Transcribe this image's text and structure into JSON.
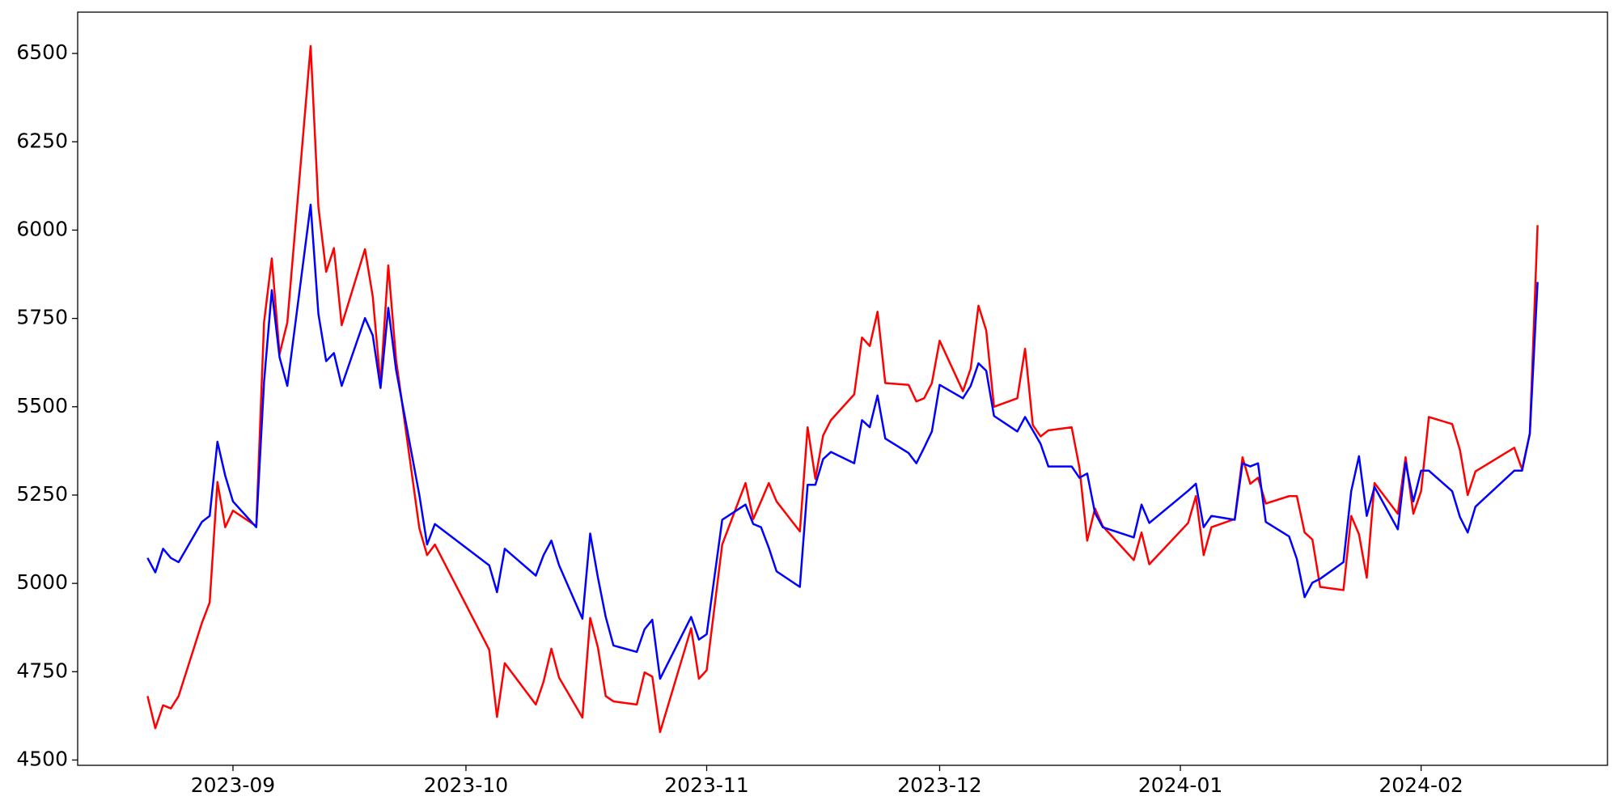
{
  "chart_data": {
    "type": "line",
    "x": [
      "2023-08-21",
      "2023-08-22",
      "2023-08-23",
      "2023-08-24",
      "2023-08-25",
      "2023-08-28",
      "2023-08-29",
      "2023-08-30",
      "2023-08-31",
      "2023-09-01",
      "2023-09-04",
      "2023-09-05",
      "2023-09-06",
      "2023-09-07",
      "2023-09-08",
      "2023-09-11",
      "2023-09-12",
      "2023-09-13",
      "2023-09-14",
      "2023-09-15",
      "2023-09-18",
      "2023-09-19",
      "2023-09-20",
      "2023-09-21",
      "2023-09-22",
      "2023-09-25",
      "2023-09-26",
      "2023-09-27",
      "2023-10-04",
      "2023-10-05",
      "2023-10-06",
      "2023-10-10",
      "2023-10-11",
      "2023-10-12",
      "2023-10-13",
      "2023-10-16",
      "2023-10-17",
      "2023-10-18",
      "2023-10-19",
      "2023-10-20",
      "2023-10-23",
      "2023-10-24",
      "2023-10-25",
      "2023-10-26",
      "2023-10-30",
      "2023-10-31",
      "2023-11-01",
      "2023-11-03",
      "2023-11-06",
      "2023-11-07",
      "2023-11-08",
      "2023-11-09",
      "2023-11-10",
      "2023-11-13",
      "2023-11-14",
      "2023-11-15",
      "2023-11-16",
      "2023-11-17",
      "2023-11-20",
      "2023-11-21",
      "2023-11-22",
      "2023-11-23",
      "2023-11-24",
      "2023-11-27",
      "2023-11-28",
      "2023-11-29",
      "2023-11-30",
      "2023-12-01",
      "2023-12-04",
      "2023-12-05",
      "2023-12-06",
      "2023-12-07",
      "2023-12-08",
      "2023-12-11",
      "2023-12-12",
      "2023-12-13",
      "2023-12-14",
      "2023-12-15",
      "2023-12-18",
      "2023-12-19",
      "2023-12-20",
      "2023-12-21",
      "2023-12-22",
      "2023-12-26",
      "2023-12-27",
      "2023-12-28",
      "2024-01-02",
      "2024-01-03",
      "2024-01-04",
      "2024-01-05",
      "2024-01-08",
      "2024-01-09",
      "2024-01-10",
      "2024-01-11",
      "2024-01-12",
      "2024-01-15",
      "2024-01-16",
      "2024-01-17",
      "2024-01-18",
      "2024-01-19",
      "2024-01-22",
      "2024-01-23",
      "2024-01-24",
      "2024-01-25",
      "2024-01-26",
      "2024-01-29",
      "2024-01-30",
      "2024-01-31",
      "2024-02-01",
      "2024-02-02",
      "2024-02-05",
      "2024-02-06",
      "2024-02-07",
      "2024-02-08",
      "2024-02-13",
      "2024-02-14",
      "2024-02-15",
      "2024-02-16"
    ],
    "series": [
      {
        "color": "#ff0000",
        "values": [
          4681,
          4590,
          4655,
          4646,
          4681,
          4888,
          4946,
          5287,
          5159,
          5206,
          5162,
          5739,
          5920,
          5649,
          5739,
          6521,
          6066,
          5882,
          5949,
          5731,
          5946,
          5812,
          5564,
          5900,
          5634,
          5156,
          5080,
          5110,
          4812,
          4622,
          4774,
          4657,
          4722,
          4815,
          4733,
          4620,
          4902,
          4818,
          4681,
          4666,
          4657,
          4748,
          4736,
          4579,
          4873,
          4730,
          4754,
          5110,
          5284,
          5182,
          5232,
          5284,
          5232,
          5147,
          5442,
          5296,
          5419,
          5462,
          5535,
          5696,
          5672,
          5769,
          5567,
          5562,
          5515,
          5524,
          5567,
          5687,
          5544,
          5608,
          5786,
          5716,
          5500,
          5524,
          5664,
          5448,
          5416,
          5433,
          5442,
          5328,
          5121,
          5212,
          5162,
          5066,
          5144,
          5054,
          5171,
          5247,
          5080,
          5159,
          5182,
          5357,
          5282,
          5299,
          5226,
          5247,
          5247,
          5144,
          5124,
          4990,
          4981,
          5191,
          5139,
          5016,
          5284,
          5197,
          5357,
          5197,
          5261,
          5471,
          5451,
          5378,
          5250,
          5317,
          5384,
          5323,
          5424,
          6014
        ]
      },
      {
        "color": "#0000ff",
        "values": [
          5072,
          5031,
          5098,
          5072,
          5060,
          5174,
          5191,
          5401,
          5305,
          5232,
          5159,
          5570,
          5830,
          5640,
          5559,
          6072,
          5763,
          5629,
          5652,
          5559,
          5751,
          5702,
          5553,
          5780,
          5605,
          5250,
          5110,
          5168,
          5051,
          4975,
          5098,
          5022,
          5080,
          5121,
          5051,
          4900,
          5141,
          5016,
          4905,
          4824,
          4806,
          4870,
          4897,
          4730,
          4905,
          4841,
          4856,
          5180,
          5223,
          5168,
          5159,
          5101,
          5034,
          4990,
          5279,
          5279,
          5352,
          5372,
          5340,
          5462,
          5442,
          5532,
          5410,
          5369,
          5340,
          5384,
          5430,
          5562,
          5524,
          5559,
          5623,
          5602,
          5474,
          5430,
          5471,
          5433,
          5395,
          5331,
          5331,
          5299,
          5311,
          5200,
          5159,
          5130,
          5223,
          5171,
          5262,
          5282,
          5159,
          5191,
          5180,
          5340,
          5331,
          5340,
          5174,
          5133,
          5069,
          4961,
          5002,
          5013,
          5060,
          5261,
          5360,
          5191,
          5273,
          5153,
          5343,
          5232,
          5319,
          5319,
          5261,
          5188,
          5144,
          5217,
          5319,
          5319,
          5424,
          5853
        ]
      }
    ],
    "xlim": [
      "2023-08-12",
      "2024-02-25"
    ],
    "xticks": [
      "2023-09",
      "2023-10",
      "2023-11",
      "2023-12",
      "2024-01",
      "2024-02"
    ],
    "ylim": [
      4485,
      6617
    ],
    "yticks": [
      4500,
      4750,
      5000,
      5250,
      5500,
      5750,
      6000,
      6250,
      6500
    ]
  }
}
